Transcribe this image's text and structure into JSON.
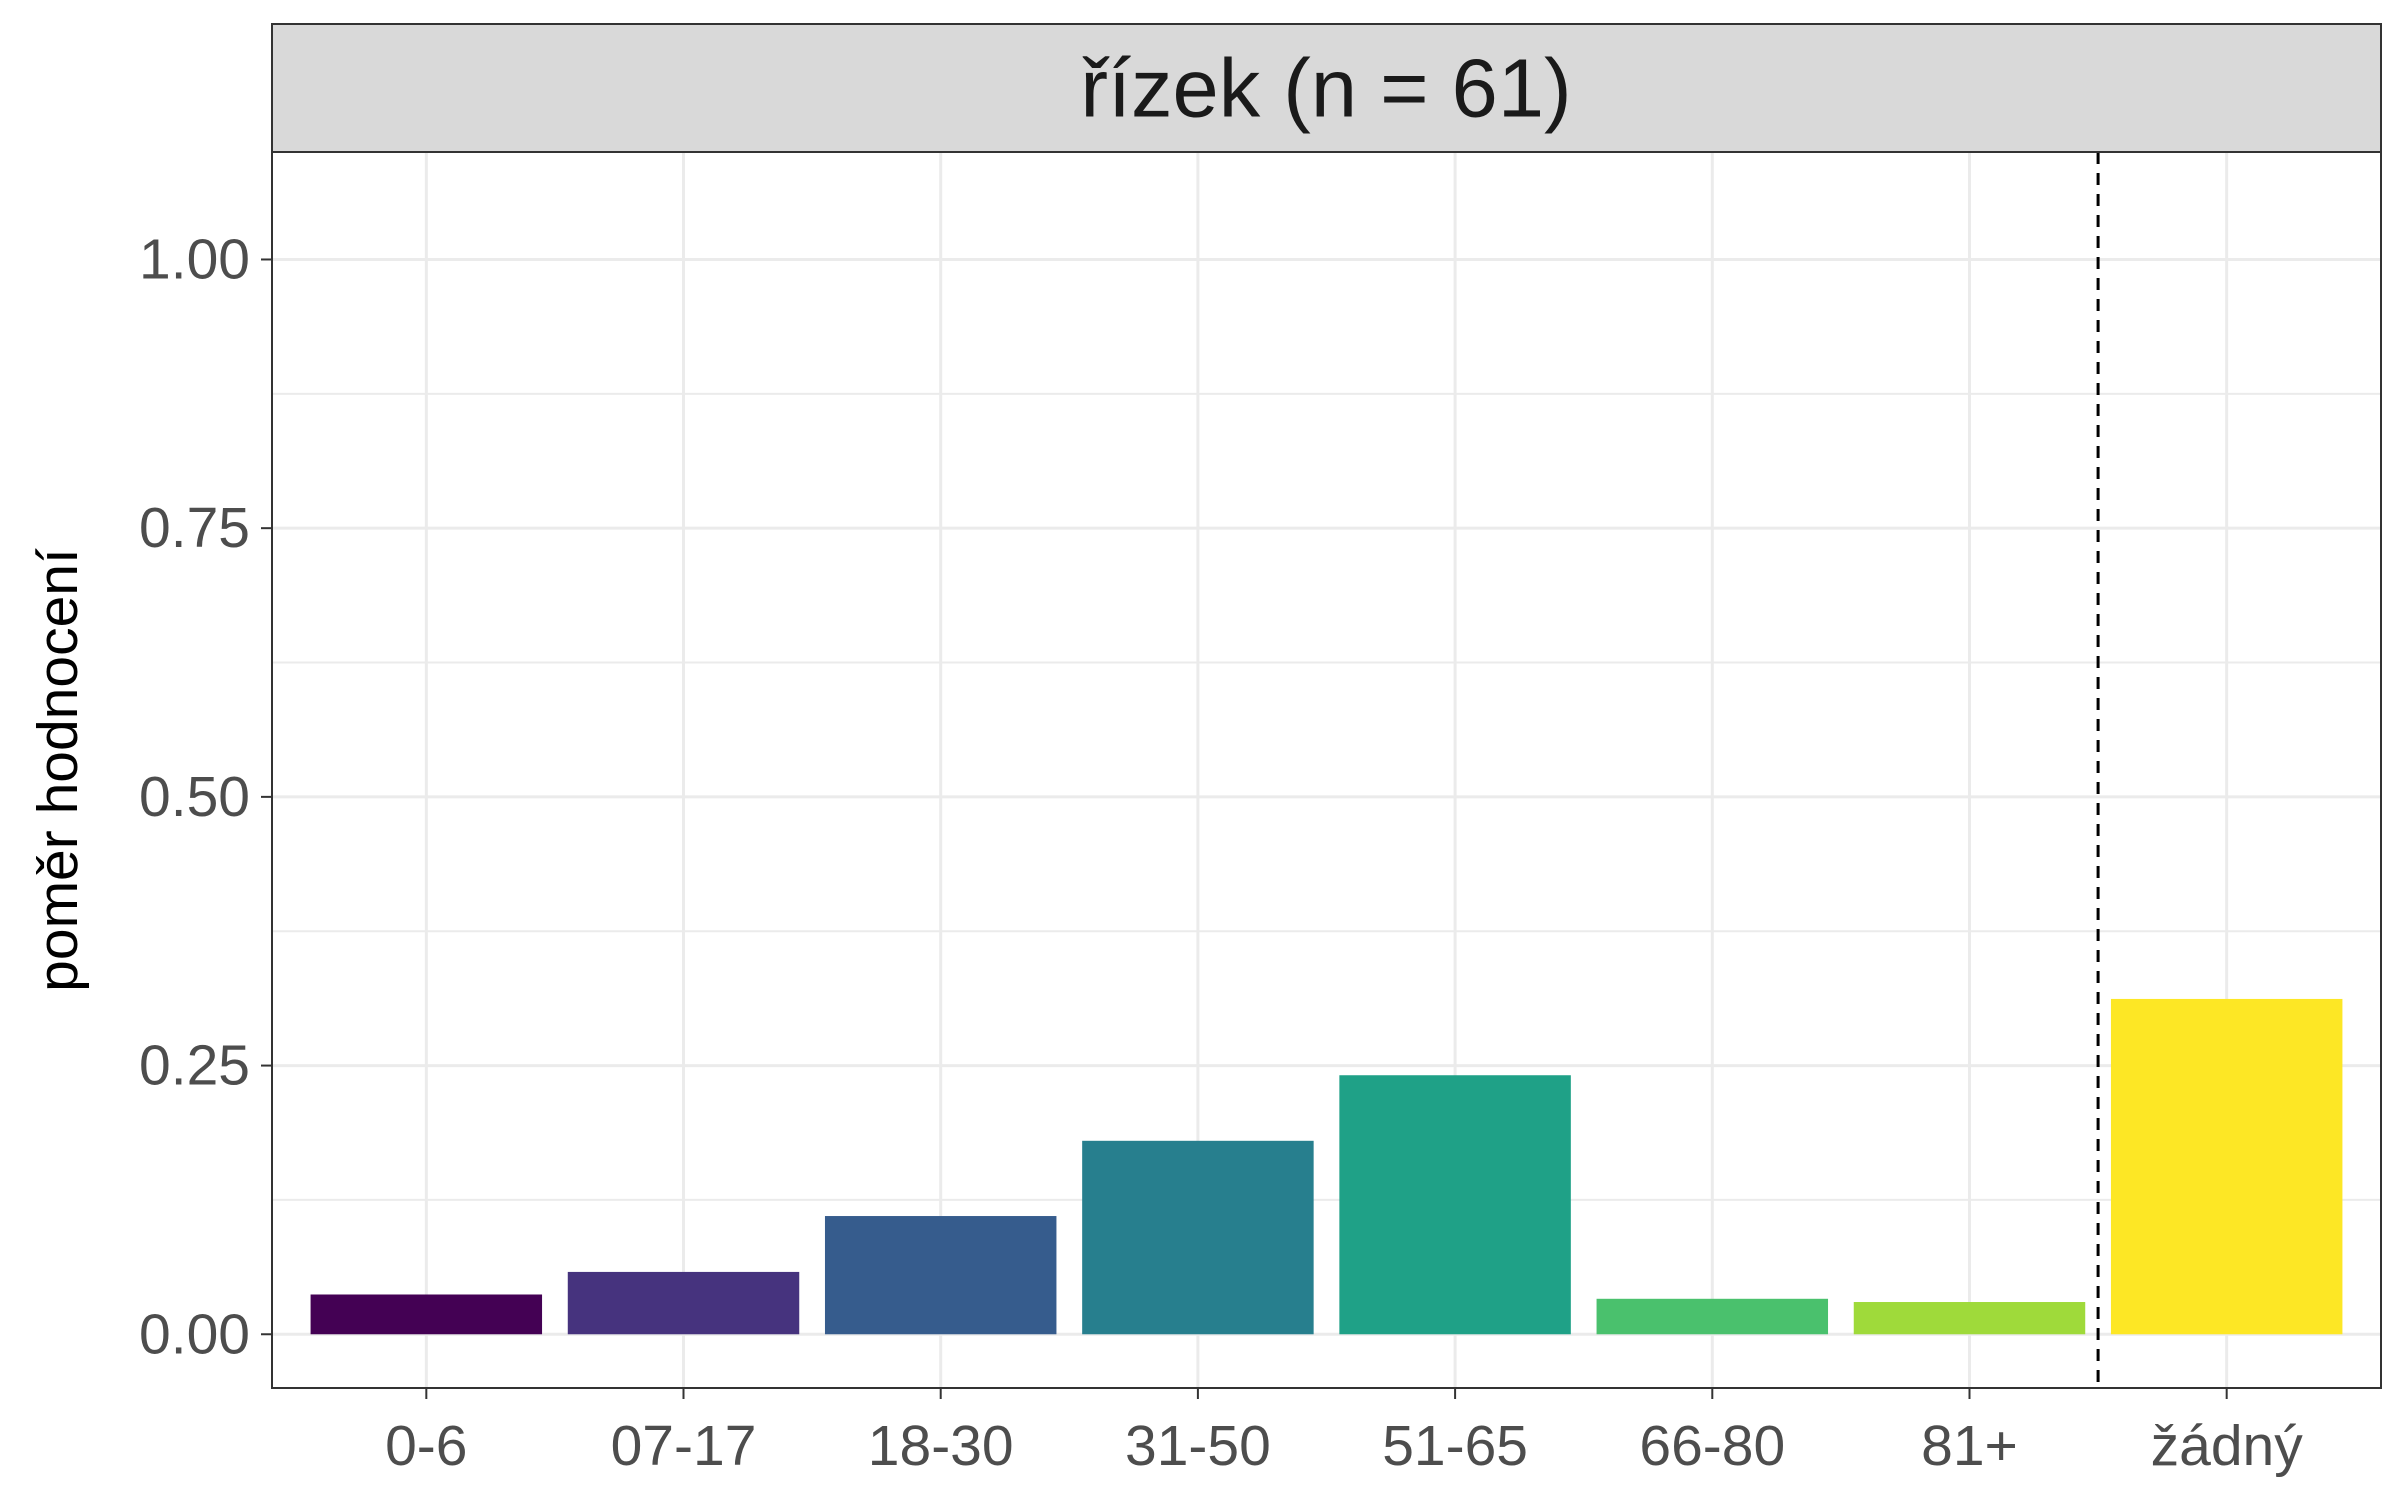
{
  "chart_data": {
    "type": "bar",
    "title": "",
    "facet_title": "řízek (n = 61)",
    "xlabel": "",
    "ylabel": "poměr hodnocení",
    "categories": [
      "0-6",
      "07-17",
      "18-30",
      "31-50",
      "51-65",
      "66-80",
      "81+",
      "žádný"
    ],
    "values": [
      0.037,
      0.058,
      0.11,
      0.18,
      0.241,
      0.033,
      0.03,
      0.312
    ],
    "colors": [
      "#440154",
      "#46337E",
      "#365C8D",
      "#277F8E",
      "#1FA187",
      "#4AC16D",
      "#9FDA3A",
      "#FDE725"
    ],
    "ylim": [
      -0.05,
      1.1
    ],
    "yticks": [
      0.0,
      0.25,
      0.5,
      0.75,
      1.0
    ],
    "ytick_labels": [
      "0.00",
      "0.25",
      "0.50",
      "0.75",
      "1.00"
    ],
    "reference_line": {
      "after_category": "81+",
      "style": "dashed",
      "color": "#000000"
    },
    "grid": true,
    "legend": "none",
    "theme": "bw"
  }
}
